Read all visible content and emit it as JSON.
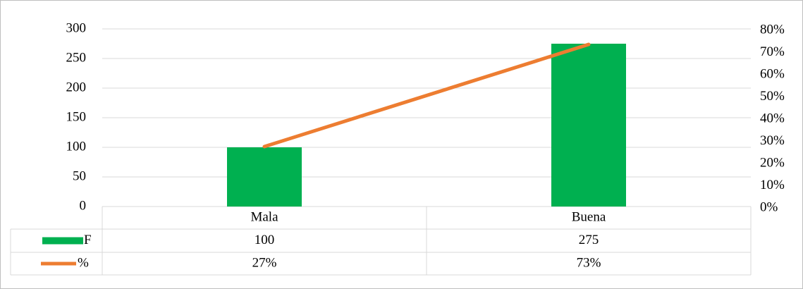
{
  "chart_data": {
    "type": "bar",
    "categories": [
      "Mala",
      "Buena"
    ],
    "series": [
      {
        "name": "F",
        "type": "bar",
        "color": "#00b050",
        "values": [
          100,
          275
        ]
      },
      {
        "name": "%",
        "type": "line",
        "axis": "y2",
        "color": "#ed7d31",
        "values": [
          27,
          73
        ],
        "value_labels": [
          "27%",
          "73%"
        ]
      }
    ],
    "ylim": [
      0,
      300
    ],
    "yticks": [
      0,
      50,
      100,
      150,
      200,
      250,
      300
    ],
    "y2lim": [
      0,
      80
    ],
    "y2ticks": [
      {
        "value": 0,
        "label": "0%"
      },
      {
        "value": 10,
        "label": "10%"
      },
      {
        "value": 20,
        "label": "20%"
      },
      {
        "value": 30,
        "label": "30%"
      },
      {
        "value": 40,
        "label": "40%"
      },
      {
        "value": 50,
        "label": "50%"
      },
      {
        "value": 60,
        "label": "60%"
      },
      {
        "value": 70,
        "label": "70%"
      },
      {
        "value": 80,
        "label": "80%"
      }
    ],
    "grid": true,
    "data_table": true
  }
}
